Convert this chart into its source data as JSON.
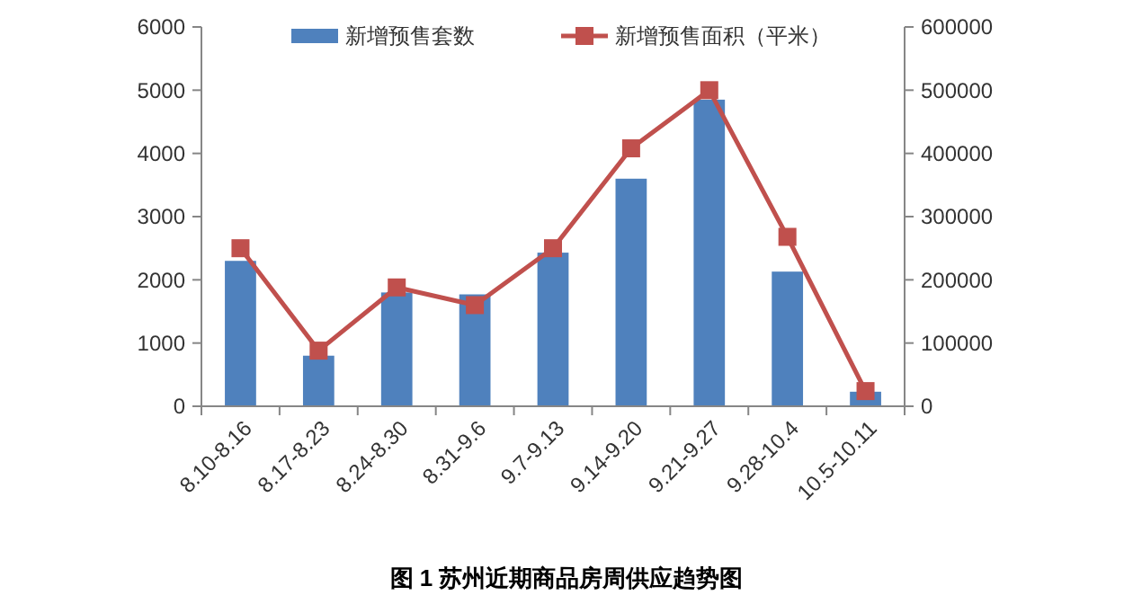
{
  "chart_data": {
    "type": "bar",
    "title": "图 1  苏州近期商品房周供应趋势图",
    "categories": [
      "8.10-8.16",
      "8.17-8.23",
      "8.24-8.30",
      "8.31-9.6",
      "9.7-9.13",
      "9.14-9.20",
      "9.21-9.27",
      "9.28-10.4",
      "10.5-10.11"
    ],
    "series": [
      {
        "name": "新增预售套数",
        "color": "#4f81bd",
        "values": [
          2300,
          800,
          1800,
          1770,
          2430,
          3600,
          4850,
          2130,
          230
        ]
      },
      {
        "name": "新增预售面积（平米）",
        "type": "line",
        "axis": "y2",
        "color": "#c0504d",
        "marker": "square",
        "values": [
          250000,
          88000,
          188000,
          160000,
          250000,
          408000,
          500000,
          268000,
          24000
        ]
      }
    ],
    "ylim": [
      0,
      6000
    ],
    "yticks": [
      0,
      1000,
      2000,
      3000,
      4000,
      5000,
      6000
    ],
    "y2lim": [
      0,
      600000
    ],
    "y2ticks": [
      0,
      100000,
      200000,
      300000,
      400000,
      500000,
      600000
    ],
    "legend": "top",
    "grid": false
  }
}
